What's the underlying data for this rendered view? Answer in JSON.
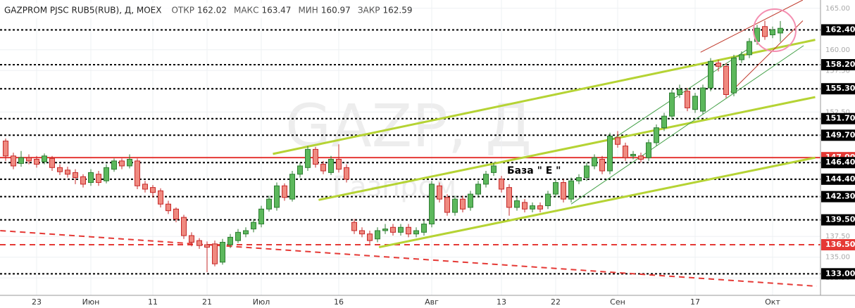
{
  "chart_data": {
    "type": "candlestick",
    "title": "GAZPROM PJSC RUB5(RUB), Д, MOEX",
    "ohlc_labels": [
      "ОТКР",
      "МАКС",
      "МИН",
      "ЗАКР"
    ],
    "watermark": "GAZP, Д",
    "watermark_subtitle": "Газпром",
    "annotation": "База \" Е \"",
    "up_color": "#5cb85c",
    "down_color": "#ef8a80",
    "categories": [
      null,
      null,
      null,
      null,
      "23",
      null,
      null,
      null,
      null,
      null,
      null,
      "Июн",
      null,
      null,
      null,
      null,
      null,
      null,
      null,
      "11",
      null,
      null,
      null,
      null,
      null,
      null,
      "21",
      null,
      null,
      null,
      null,
      null,
      null,
      "Июл",
      null,
      null,
      null,
      null,
      null,
      null,
      null,
      null,
      null,
      "16",
      null,
      null,
      null,
      null,
      null,
      null,
      null,
      null,
      null,
      null,
      null,
      "Авг",
      null,
      null,
      null,
      null,
      null,
      null,
      null,
      null,
      "13",
      null,
      null,
      null,
      null,
      null,
      null,
      "22",
      null,
      null,
      null,
      null,
      null,
      null,
      null,
      "Сен",
      null,
      null,
      null,
      null,
      null,
      null,
      null,
      null,
      null,
      "17",
      null,
      null,
      null,
      null,
      null,
      null,
      null,
      null,
      null,
      "Окт",
      null
    ],
    "open": [
      149.0,
      147.2,
      146.3,
      147.0,
      146.8,
      146.5,
      146.9,
      145.8,
      145.5,
      145.2,
      144.7,
      144.0,
      145.0,
      144.2,
      145.6,
      146.6,
      146.0,
      146.6,
      143.8,
      143.4,
      143.0,
      141.4,
      140.8,
      139.8,
      137.6,
      137.0,
      136.5,
      136.6,
      134.4,
      136.5,
      137.0,
      137.8,
      138.4,
      139.0,
      140.8,
      141.0,
      143.6,
      142.0,
      145.0,
      145.8,
      148.0,
      146.2,
      145.2,
      146.8,
      145.8,
      139.2,
      138.2,
      137.8,
      137.2,
      138.2,
      138.6,
      138.0,
      138.6,
      137.8,
      138.0,
      139.0,
      143.6,
      142.2,
      140.4,
      142.0,
      141.0,
      142.6,
      143.8,
      145.2,
      144.4,
      143.4,
      141.0,
      141.6,
      140.8,
      141.2,
      141.2,
      142.6,
      144.0,
      142.0,
      144.2,
      144.6,
      146.0,
      146.8,
      145.4,
      149.4,
      148.4,
      147.2,
      147.2,
      147.0,
      148.8,
      150.6,
      152.0,
      154.6,
      155.0,
      152.8,
      152.6,
      155.4,
      158.4,
      158.0,
      154.8,
      158.8,
      159.4,
      161.0,
      162.8,
      161.8,
      162.02
    ],
    "high": [
      149.3,
      147.6,
      147.8,
      147.4,
      147.2,
      147.5,
      147.2,
      146.2,
      145.9,
      145.6,
      145.0,
      145.6,
      145.4,
      146.2,
      146.9,
      146.9,
      147.4,
      146.9,
      144.2,
      143.7,
      143.3,
      141.8,
      141.0,
      140.1,
      138.0,
      137.3,
      136.9,
      137.0,
      137.2,
      137.8,
      138.4,
      138.6,
      139.6,
      141.2,
      142.4,
      144.0,
      143.9,
      145.4,
      146.4,
      148.4,
      148.3,
      146.6,
      147.2,
      148.6,
      146.2,
      139.6,
      138.6,
      138.2,
      138.6,
      139.0,
      139.0,
      139.0,
      139.0,
      138.6,
      139.4,
      144.2,
      144.0,
      142.6,
      142.4,
      142.4,
      143.0,
      144.2,
      145.4,
      146.4,
      144.8,
      143.8,
      142.2,
      142.0,
      141.6,
      141.6,
      143.0,
      144.4,
      144.4,
      144.6,
      145.0,
      146.4,
      147.4,
      147.2,
      150.0,
      150.2,
      148.8,
      147.8,
      147.6,
      149.2,
      151.0,
      152.4,
      155.2,
      155.8,
      155.4,
      154.8,
      155.8,
      159.0,
      158.8,
      158.4,
      159.4,
      159.8,
      161.4,
      163.0,
      163.5,
      162.8,
      163.47
    ],
    "low": [
      146.6,
      145.6,
      145.9,
      146.2,
      145.8,
      146.2,
      145.4,
      144.9,
      144.6,
      143.8,
      143.4,
      143.6,
      143.6,
      143.9,
      145.3,
      145.6,
      145.7,
      143.2,
      142.8,
      142.2,
      141.0,
      140.2,
      139.2,
      137.2,
      136.3,
      136.0,
      133.2,
      133.9,
      134.1,
      136.1,
      136.7,
      137.4,
      138.0,
      138.6,
      140.5,
      140.6,
      141.8,
      141.7,
      144.6,
      145.4,
      145.8,
      145.0,
      144.9,
      145.2,
      144.0,
      137.8,
      137.4,
      136.6,
      136.8,
      137.8,
      137.6,
      137.6,
      137.4,
      137.4,
      137.6,
      138.6,
      141.6,
      140.0,
      140.0,
      140.4,
      140.6,
      142.2,
      143.4,
      144.8,
      142.8,
      140.0,
      140.6,
      140.4,
      140.4,
      140.4,
      140.8,
      142.2,
      141.6,
      141.6,
      143.8,
      144.2,
      145.6,
      145.0,
      145.0,
      148.2,
      146.6,
      146.8,
      146.4,
      146.6,
      148.4,
      150.2,
      151.6,
      154.2,
      152.6,
      152.4,
      152.2,
      155.0,
      157.4,
      154.2,
      154.4,
      158.4,
      159.0,
      160.6,
      161.2,
      161.4,
      160.97
    ],
    "close": [
      147.2,
      146.0,
      147.0,
      146.6,
      146.2,
      147.2,
      145.8,
      145.3,
      145.0,
      144.6,
      143.8,
      145.2,
      144.0,
      145.8,
      146.6,
      146.0,
      146.8,
      143.6,
      143.2,
      142.8,
      141.4,
      140.6,
      139.6,
      137.6,
      136.8,
      136.4,
      136.2,
      134.2,
      136.8,
      137.4,
      138.0,
      138.2,
      139.2,
      140.8,
      142.0,
      143.6,
      142.2,
      145.0,
      146.0,
      148.0,
      146.2,
      145.4,
      146.8,
      145.6,
      144.4,
      138.2,
      137.8,
      137.0,
      138.2,
      138.4,
      138.0,
      138.6,
      137.8,
      138.2,
      139.0,
      143.8,
      142.0,
      140.4,
      142.0,
      140.8,
      142.6,
      143.8,
      145.0,
      146.0,
      143.2,
      141.0,
      141.8,
      140.8,
      141.2,
      140.8,
      142.6,
      144.0,
      142.0,
      144.2,
      144.6,
      146.0,
      147.0,
      145.4,
      149.6,
      148.6,
      147.0,
      147.4,
      146.8,
      148.8,
      150.6,
      152.0,
      154.8,
      155.2,
      153.0,
      154.4,
      155.4,
      158.6,
      158.0,
      154.6,
      159.0,
      159.4,
      161.0,
      162.6,
      161.6,
      162.4,
      162.59
    ],
    "ylim": [
      130.4,
      166
    ],
    "yticks": [
      {
        "value": 165,
        "label": "165.00"
      },
      {
        "value": 160,
        "label": "160.00"
      },
      {
        "value": 157.5,
        "label": "157.50"
      },
      {
        "value": 152.5,
        "label": "152.50"
      },
      {
        "value": 137.5,
        "label": "137.50"
      },
      {
        "value": 135,
        "label": "135.00"
      },
      {
        "value": 132.5,
        "label": "132.50"
      }
    ],
    "levels": [
      {
        "value": 162.4,
        "label": "162.40",
        "color": "#000000",
        "style": "dotted"
      },
      {
        "value": 158.2,
        "label": "158.20",
        "color": "#000000",
        "style": "dotted"
      },
      {
        "value": 155.3,
        "label": "155.30",
        "color": "#000000",
        "style": "dotted"
      },
      {
        "value": 151.7,
        "label": "151.70",
        "color": "#000000",
        "style": "dotted"
      },
      {
        "value": 149.7,
        "label": "149.70",
        "color": "#000000",
        "style": "dotted"
      },
      {
        "value": 147,
        "label": "147.00",
        "color": "#e53935",
        "style": "solid"
      },
      {
        "value": 146.4,
        "label": "146.40",
        "color": "#000000",
        "style": "dotted"
      },
      {
        "value": 144.4,
        "label": "144.40",
        "color": "#000000",
        "style": "dotted"
      },
      {
        "value": 142.3,
        "label": "142.30",
        "color": "#000000",
        "style": "dotted"
      },
      {
        "value": 139.5,
        "label": "139.50",
        "color": "#000000",
        "style": "dotted"
      },
      {
        "value": 136.5,
        "label": "136.50",
        "color": "#e53935",
        "style": "dashed"
      },
      {
        "value": 133,
        "label": "133.00",
        "color": "#000000",
        "style": "dotted"
      }
    ],
    "drawings": [
      {
        "color": "#b5d334",
        "width": 3,
        "x": [
          34.5,
          104.5
        ],
        "y": [
          147.45,
          161.2
        ]
      },
      {
        "color": "#b5d334",
        "width": 3,
        "x": [
          40.4,
          104.5
        ],
        "y": [
          141.9,
          154.3
        ]
      },
      {
        "color": "#b5d334",
        "width": 3,
        "x": [
          48.2,
          104.5
        ],
        "y": [
          136.2,
          147.0
        ]
      },
      {
        "color": "#43a047",
        "width": 1,
        "x": [
          73,
          103
        ],
        "y": [
          141.4,
          160.5
        ]
      },
      {
        "color": "#43a047",
        "width": 1,
        "x": [
          78,
          96
        ],
        "y": [
          149.0,
          160.2
        ]
      },
      {
        "color": "#c0392b",
        "width": 1,
        "x": [
          89.7,
          102.9
        ],
        "y": [
          159.7,
          166
        ]
      },
      {
        "color": "#c0392b",
        "width": 1,
        "x": [
          93.6,
          102.9
        ],
        "y": [
          154.9,
          163.5
        ]
      },
      {
        "color": "#e53935",
        "width": 2,
        "dash": "8,6",
        "x": [
          -0.7,
          104.7
        ],
        "y": [
          138.2,
          131.5
        ]
      }
    ]
  }
}
